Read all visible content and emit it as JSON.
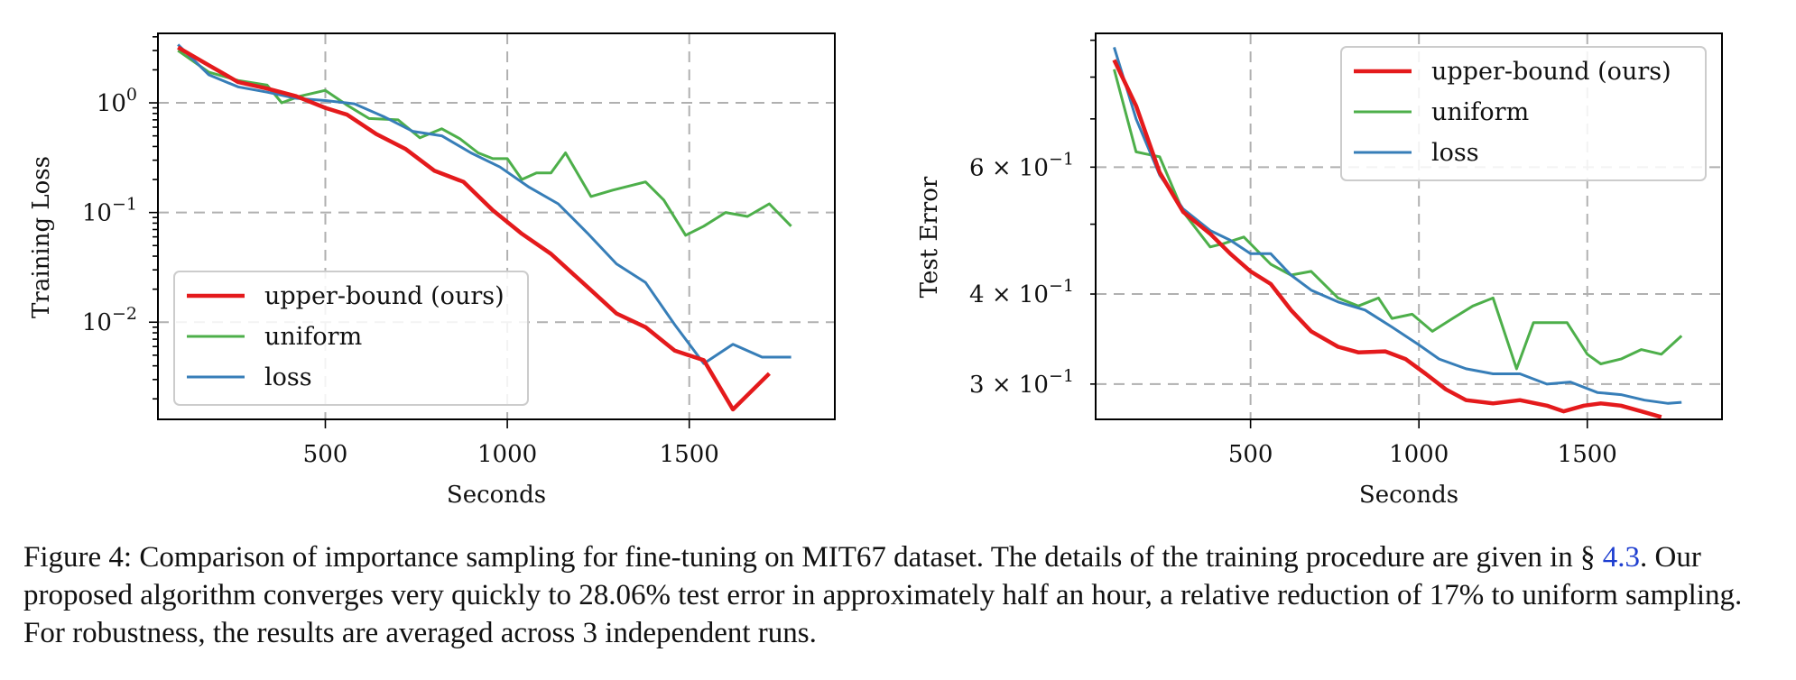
{
  "colors": {
    "upper": "#e41a1c",
    "uniform": "#4daf4a",
    "loss": "#377eb8",
    "grid": "#b0b0b0",
    "frame": "#000000",
    "ref_link": "#1f3fd0"
  },
  "chart_data": [
    {
      "type": "line",
      "panel": "left",
      "xlabel": "Seconds",
      "ylabel": "Training Loss",
      "yscale": "log",
      "xlim": [
        40,
        1900
      ],
      "ylim": [
        0.0013,
        4.3
      ],
      "xticks": [
        500,
        1000,
        1500
      ],
      "xtick_labels": [
        "500",
        "1000",
        "1500"
      ],
      "yticks": [
        1,
        0.1,
        0.01
      ],
      "ytick_labels": [
        {
          "base": "10",
          "exp": "0"
        },
        {
          "base": "10",
          "exp": "−1"
        },
        {
          "base": "10",
          "exp": "−2"
        }
      ],
      "grid": true,
      "legend_position": "lower-left",
      "series": [
        {
          "name": "upper-bound (ours)",
          "color_key": "upper",
          "x": [
            95,
            180,
            260,
            340,
            420,
            500,
            560,
            640,
            720,
            800,
            880,
            960,
            1040,
            1120,
            1220,
            1300,
            1380,
            1460,
            1540,
            1620,
            1720
          ],
          "y": [
            3.2,
            2.2,
            1.55,
            1.35,
            1.15,
            0.9,
            0.78,
            0.52,
            0.38,
            0.24,
            0.19,
            0.105,
            0.064,
            0.042,
            0.021,
            0.012,
            0.009,
            0.0055,
            0.0045,
            0.0016,
            0.0034
          ]
        },
        {
          "name": "uniform",
          "color_key": "uniform",
          "x": [
            95,
            180,
            260,
            340,
            380,
            430,
            500,
            560,
            620,
            700,
            760,
            820,
            870,
            920,
            960,
            1000,
            1040,
            1080,
            1120,
            1160,
            1230,
            1290,
            1380,
            1430,
            1490,
            1540,
            1600,
            1660,
            1720,
            1780
          ],
          "y": [
            3.0,
            1.9,
            1.6,
            1.45,
            1.0,
            1.15,
            1.3,
            0.95,
            0.72,
            0.7,
            0.48,
            0.58,
            0.47,
            0.35,
            0.31,
            0.31,
            0.2,
            0.23,
            0.23,
            0.35,
            0.14,
            0.16,
            0.19,
            0.13,
            0.062,
            0.075,
            0.1,
            0.092,
            0.12,
            0.075
          ]
        },
        {
          "name": "loss",
          "color_key": "loss",
          "x": [
            95,
            180,
            260,
            340,
            420,
            500,
            580,
            660,
            740,
            820,
            900,
            980,
            1060,
            1140,
            1220,
            1300,
            1380,
            1460,
            1540,
            1620,
            1700,
            1780
          ],
          "y": [
            3.4,
            1.8,
            1.4,
            1.25,
            1.1,
            1.05,
            0.98,
            0.75,
            0.55,
            0.5,
            0.35,
            0.26,
            0.17,
            0.12,
            0.065,
            0.034,
            0.023,
            0.0095,
            0.0042,
            0.0063,
            0.0048,
            0.0048
          ]
        }
      ]
    },
    {
      "type": "line",
      "panel": "right",
      "xlabel": "Seconds",
      "ylabel": "Test Error",
      "yscale": "log",
      "xlim": [
        40,
        1900
      ],
      "ylim": [
        0.268,
        0.92
      ],
      "xticks": [
        500,
        1000,
        1500
      ],
      "xtick_labels": [
        "500",
        "1000",
        "1500"
      ],
      "yticks": [
        0.6,
        0.4,
        0.3
      ],
      "ytick_labels": [
        {
          "base": "6 × 10",
          "exp": "−1"
        },
        {
          "base": "4 × 10",
          "exp": "−1"
        },
        {
          "base": "3 × 10",
          "exp": "−1"
        }
      ],
      "grid": true,
      "legend_position": "upper-right",
      "series": [
        {
          "name": "upper-bound (ours)",
          "color_key": "upper",
          "x": [
            95,
            160,
            230,
            300,
            380,
            440,
            500,
            560,
            620,
            680,
            760,
            820,
            900,
            960,
            1020,
            1080,
            1140,
            1220,
            1300,
            1380,
            1430,
            1490,
            1540,
            1600,
            1660,
            1720
          ],
          "y": [
            0.845,
            0.73,
            0.59,
            0.52,
            0.485,
            0.455,
            0.43,
            0.413,
            0.38,
            0.355,
            0.338,
            0.332,
            0.333,
            0.325,
            0.31,
            0.295,
            0.285,
            0.282,
            0.285,
            0.28,
            0.275,
            0.28,
            0.282,
            0.28,
            0.275,
            0.27
          ]
        },
        {
          "name": "uniform",
          "color_key": "uniform",
          "x": [
            95,
            160,
            230,
            300,
            380,
            420,
            480,
            560,
            620,
            680,
            760,
            820,
            880,
            920,
            980,
            1040,
            1100,
            1160,
            1220,
            1290,
            1340,
            1400,
            1440,
            1500,
            1540,
            1600,
            1660,
            1720,
            1780
          ],
          "y": [
            0.82,
            0.63,
            0.62,
            0.52,
            0.465,
            0.47,
            0.48,
            0.44,
            0.425,
            0.43,
            0.395,
            0.385,
            0.395,
            0.37,
            0.375,
            0.355,
            0.37,
            0.385,
            0.395,
            0.315,
            0.365,
            0.365,
            0.365,
            0.33,
            0.32,
            0.325,
            0.335,
            0.33,
            0.35
          ]
        },
        {
          "name": "loss",
          "color_key": "loss",
          "x": [
            95,
            160,
            230,
            300,
            380,
            440,
            500,
            560,
            620,
            680,
            760,
            840,
            920,
            1000,
            1060,
            1140,
            1220,
            1300,
            1380,
            1450,
            1530,
            1600,
            1670,
            1740,
            1780
          ],
          "y": [
            0.88,
            0.7,
            0.585,
            0.525,
            0.49,
            0.475,
            0.455,
            0.455,
            0.425,
            0.405,
            0.39,
            0.38,
            0.36,
            0.34,
            0.325,
            0.315,
            0.31,
            0.31,
            0.3,
            0.302,
            0.292,
            0.29,
            0.285,
            0.282,
            0.283
          ]
        }
      ]
    }
  ],
  "caption": {
    "label": "Figure 4:",
    "text_a": " Comparison of importance sampling for fine-tuning on MIT67 dataset. The details of the training procedure are given in § ",
    "ref": "4.3",
    "text_b": ". Our proposed algorithm converges very quickly to 28.06% test error in approximately half an hour, a relative reduction of 17% to uniform sampling. For robustness, the results are averaged across 3 independent runs."
  }
}
